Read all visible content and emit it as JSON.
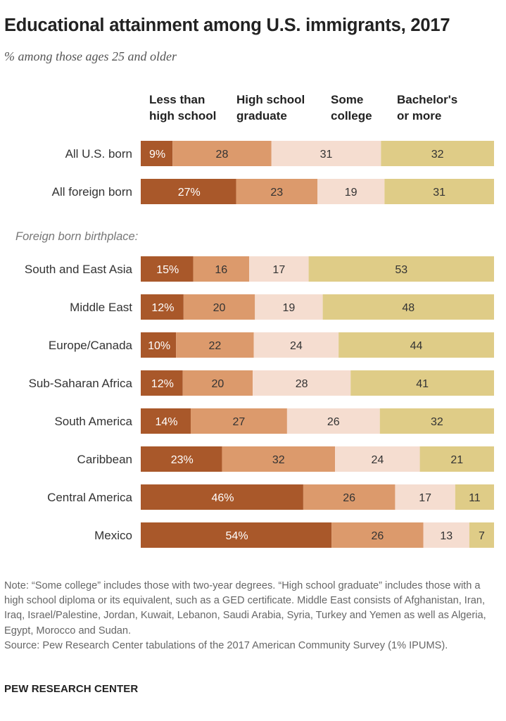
{
  "header": {
    "title": "Educational attainment among U.S. immigrants, 2017",
    "subtitle": "% among those ages 25 and older"
  },
  "chart_data": {
    "type": "bar",
    "orientation": "horizontal",
    "stacked": true,
    "title": "Educational attainment among U.S. immigrants, 2017",
    "subtitle": "% among those ages 25 and older",
    "legend_placement": "top",
    "grid": false,
    "xlim": [
      0,
      100
    ],
    "series": [
      {
        "name": "Less than high school",
        "name_lines": [
          "Less than",
          "high school"
        ],
        "color": "#a9582a",
        "label_color": "#ffffff"
      },
      {
        "name": "High school graduate",
        "name_lines": [
          "High school",
          "graduate"
        ],
        "color": "#dc9a6c",
        "label_color": "#333333"
      },
      {
        "name": "Some college",
        "name_lines": [
          "Some",
          "college"
        ],
        "color": "#f5ddd0",
        "label_color": "#333333"
      },
      {
        "name": "Bachelor's or more",
        "name_lines": [
          "Bachelor's",
          "or more"
        ],
        "color": "#dfcc87",
        "label_color": "#333333"
      }
    ],
    "group_label": "Foreign born birthplace:",
    "rows": [
      {
        "category": "All U.S. born",
        "values": [
          9,
          28,
          31,
          32
        ],
        "labels": [
          "9%",
          "28",
          "31",
          "32"
        ]
      },
      {
        "category": "All foreign born",
        "values": [
          27,
          23,
          19,
          31
        ],
        "labels": [
          "27%",
          "23",
          "19",
          "31"
        ]
      },
      {
        "category": "South and East Asia",
        "values": [
          15,
          16,
          17,
          53
        ],
        "labels": [
          "15%",
          "16",
          "17",
          "53"
        ]
      },
      {
        "category": "Middle East",
        "values": [
          12,
          20,
          19,
          48
        ],
        "labels": [
          "12%",
          "20",
          "19",
          "48"
        ]
      },
      {
        "category": "Europe/Canada",
        "values": [
          10,
          22,
          24,
          44
        ],
        "labels": [
          "10%",
          "22",
          "24",
          "44"
        ]
      },
      {
        "category": "Sub-Saharan Africa",
        "values": [
          12,
          20,
          28,
          41
        ],
        "labels": [
          "12%",
          "20",
          "28",
          "41"
        ]
      },
      {
        "category": "South America",
        "values": [
          14,
          27,
          26,
          32
        ],
        "labels": [
          "14%",
          "27",
          "26",
          "32"
        ]
      },
      {
        "category": "Caribbean",
        "values": [
          23,
          32,
          24,
          21
        ],
        "labels": [
          "23%",
          "32",
          "24",
          "21"
        ]
      },
      {
        "category": "Central America",
        "values": [
          46,
          26,
          17,
          11
        ],
        "labels": [
          "46%",
          "26",
          "17",
          "11"
        ]
      },
      {
        "category": "Mexico",
        "values": [
          54,
          26,
          13,
          7
        ],
        "labels": [
          "54%",
          "26",
          "13",
          "7"
        ]
      }
    ]
  },
  "footer": {
    "note": "Note: “Some college” includes those with two-year degrees. “High school graduate” includes those with a high school diploma or its equivalent, such as a GED certificate. Middle East consists of Afghanistan, Iran, Iraq, Israel/Palestine, Jordan, Kuwait, Lebanon, Saudi Arabia, Syria, Turkey and Yemen as well as Algeria, Egypt, Morocco and Sudan.",
    "source": "Source: Pew Research Center tabulations of the 2017 American Community Survey (1% IPUMS).",
    "brand": "PEW RESEARCH CENTER"
  }
}
